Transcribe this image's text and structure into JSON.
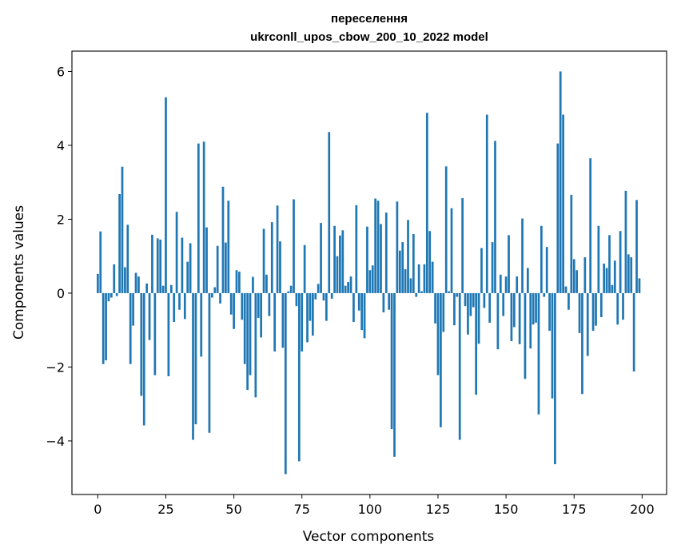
{
  "chart_data": {
    "type": "bar",
    "title": "переселення",
    "subtitle": "ukrconll_upos_cbow_200_10_2022 model",
    "xlabel": "Vector components",
    "ylabel": "Components values",
    "xlim": [
      -9.5,
      209
    ],
    "ylim": [
      -5.45,
      6.55
    ],
    "xticks": [
      0,
      25,
      50,
      75,
      100,
      125,
      150,
      175,
      200
    ],
    "yticks": [
      -4,
      -2,
      0,
      2,
      4,
      6
    ],
    "ytick_labels": [
      "−4",
      "−2",
      "0",
      "2",
      "4",
      "6"
    ],
    "grid": false,
    "color": "#1f77b4",
    "values": [
      0.52,
      1.67,
      -1.92,
      -1.82,
      -0.22,
      -0.12,
      0.78,
      -0.08,
      2.68,
      3.42,
      0.7,
      1.85,
      -1.92,
      -0.88,
      0.55,
      0.45,
      -2.78,
      -3.58,
      0.26,
      -1.27,
      1.58,
      -2.22,
      1.48,
      1.45,
      0.2,
      5.3,
      -2.25,
      0.22,
      -0.78,
      2.2,
      -0.45,
      1.5,
      -0.7,
      0.85,
      1.35,
      -3.97,
      -3.55,
      4.05,
      -1.72,
      4.1,
      1.78,
      -3.78,
      -0.12,
      0.16,
      1.28,
      -0.28,
      2.88,
      1.37,
      2.5,
      -0.58,
      -0.97,
      0.62,
      0.58,
      -0.72,
      -1.92,
      -2.62,
      -2.22,
      0.44,
      -2.82,
      -0.67,
      -1.2,
      1.74,
      0.5,
      -0.62,
      1.92,
      -1.58,
      2.37,
      1.4,
      -1.48,
      -4.9,
      0.05,
      0.2,
      2.54,
      -0.35,
      -4.55,
      -1.58,
      1.3,
      -1.33,
      -0.75,
      -1.15,
      -0.17,
      0.25,
      1.9,
      -0.2,
      -0.75,
      4.36,
      -0.15,
      1.82,
      1.0,
      1.56,
      1.7,
      0.2,
      0.3,
      0.45,
      -0.78,
      2.38,
      -0.47,
      -1.0,
      -1.22,
      1.8,
      0.62,
      0.75,
      2.56,
      2.5,
      1.87,
      -0.52,
      2.18,
      -0.45,
      -3.68,
      -4.43,
      2.48,
      1.15,
      1.38,
      0.65,
      1.98,
      0.4,
      1.6,
      -0.1,
      0.78,
      0.05,
      0.78,
      4.88,
      1.68,
      0.85,
      -0.82,
      -2.22,
      -3.63,
      -1.05,
      3.43,
      0.05,
      2.3,
      -0.87,
      -0.1,
      -3.97,
      2.57,
      -0.35,
      -1.12,
      -0.62,
      -0.38,
      -2.75,
      -1.37,
      1.22,
      -0.4,
      4.83,
      -0.8,
      1.38,
      4.12,
      -1.52,
      0.5,
      -0.62,
      0.45,
      1.57,
      -1.3,
      -0.92,
      0.45,
      -1.38,
      2.02,
      -2.32,
      0.68,
      -1.5,
      -0.85,
      -0.8,
      -3.28,
      1.82,
      -0.1,
      1.25,
      -1.02,
      -2.85,
      -4.63,
      4.05,
      6.0,
      4.83,
      0.18,
      -0.45,
      2.66,
      0.92,
      0.62,
      -1.08,
      -2.73,
      0.97,
      -1.7,
      3.65,
      -1.02,
      -0.88,
      1.82,
      -0.65,
      0.8,
      0.68,
      1.57,
      0.22,
      0.88,
      -0.85,
      1.68,
      -0.72,
      2.77,
      1.05,
      0.97,
      -2.12,
      2.52,
      0.4
    ]
  }
}
